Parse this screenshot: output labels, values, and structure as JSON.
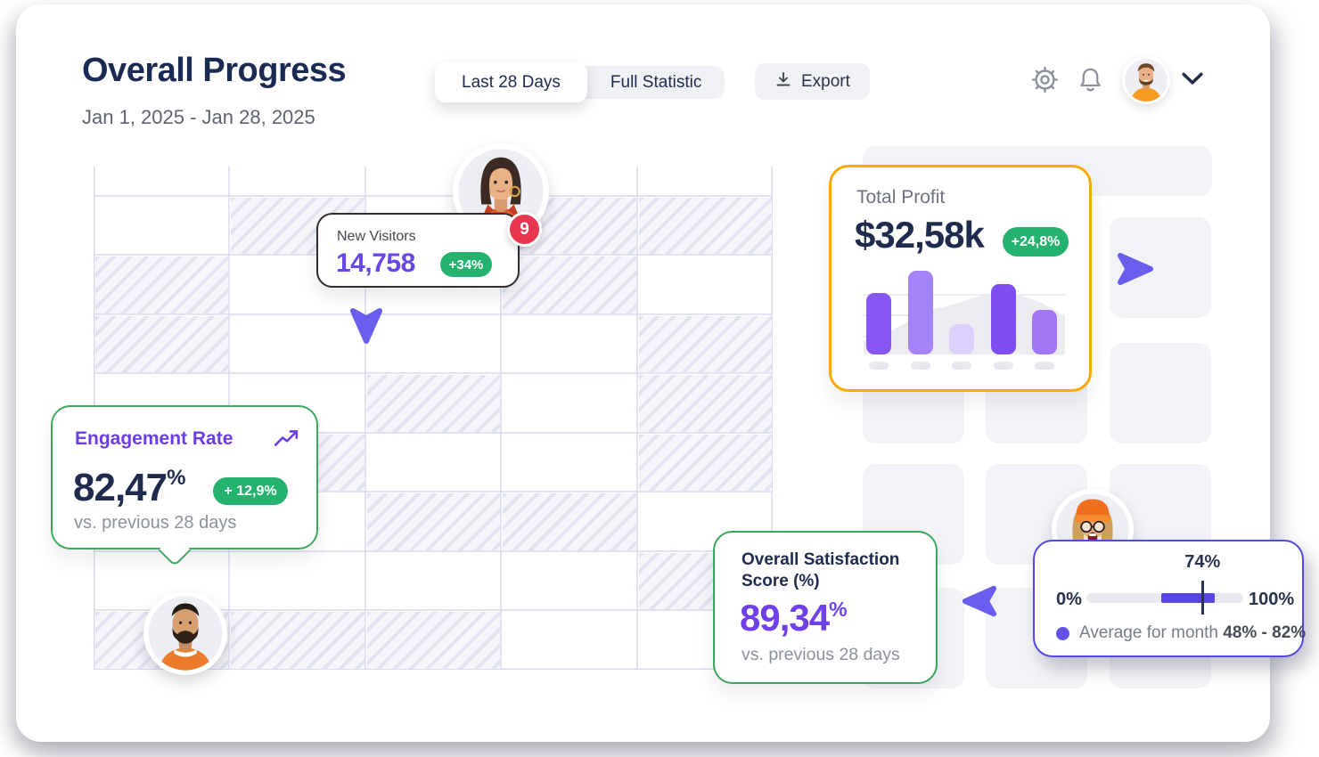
{
  "header": {
    "title": "Overall Progress",
    "date_range": "Jan 1, 2025 - Jan 28, 2025",
    "tabs": [
      {
        "label": "Last 28 Days",
        "active": true
      },
      {
        "label": "Full Statistic",
        "active": false
      }
    ],
    "export_label": "Export",
    "icons": [
      "download-icon",
      "gear-icon",
      "bell-icon",
      "user-avatar",
      "chevron-down-icon"
    ]
  },
  "cards": {
    "new_visitors": {
      "label": "New Visitors",
      "value": "14,758",
      "delta": "+34%",
      "avatar_badge": "9"
    },
    "total_profit": {
      "label": "Total Profit",
      "value": "$32,58k",
      "delta": "+24,8%"
    },
    "engagement_rate": {
      "label": "Engagement Rate",
      "value": "82,47",
      "unit": "%",
      "delta": "+ 12,9%",
      "comparison": "vs. previous 28 days"
    },
    "satisfaction": {
      "label_line1": "Overall Satisfaction",
      "label_line2": "Score (%)",
      "value": "89,34",
      "unit": "%",
      "comparison": "vs. previous 28 days"
    },
    "monthly_range": {
      "current_label": "74%",
      "current_pct": 74,
      "min_label": "0%",
      "max_label": "100%",
      "range_start_pct": 48,
      "range_end_pct": 82,
      "legend_prefix": "Average for month",
      "legend_range": "48% - 82%"
    }
  },
  "chart_data": {
    "type": "bar",
    "title": "Total Profit",
    "headline_value": "$32,58k",
    "delta": "+24,8%",
    "categories": [
      "",
      "",
      "",
      "",
      ""
    ],
    "values": [
      69,
      94,
      34,
      79,
      50
    ],
    "value_note": "relative bar heights (no axis labels shown in UI), max chart height = 92",
    "bar_colors": [
      "#8655f2",
      "#a483f8",
      "#ddd0fc",
      "#7e4df0",
      "#a177f6"
    ],
    "gridlines": true,
    "legend": "none"
  },
  "colors": {
    "accent_purple": "#6847e6",
    "slider_purple": "#5747e0",
    "cursor_purple": "#6a5cec",
    "green_badge": "#25b26e",
    "green_border": "#39a85b",
    "orange_border": "#f9ab00",
    "navy_text": "#1f2b4d",
    "gray_text": "#5d6470",
    "red_badge": "#e8364f"
  }
}
